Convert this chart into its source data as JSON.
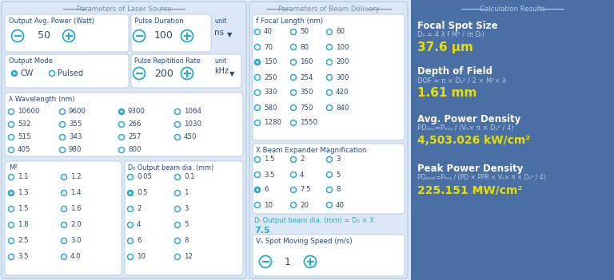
{
  "bg_panel": "#dce8f5",
  "bg_right": "#4a6fa5",
  "panel_bg": "#ffffff",
  "panel_border": "#b0c8e0",
  "title_color": "#7090b0",
  "text_dark": "#2a4a7a",
  "yellow": "#e8e000",
  "white": "#ffffff",
  "light_blue": "#b8cce4",
  "radio_color": "#2aaad0",
  "overall_bg": "#dce8f5",
  "left_title": "Parameters of Laser Source",
  "mid_title": "Parameters of Beam Delivery",
  "right_title": "Calculation Results"
}
